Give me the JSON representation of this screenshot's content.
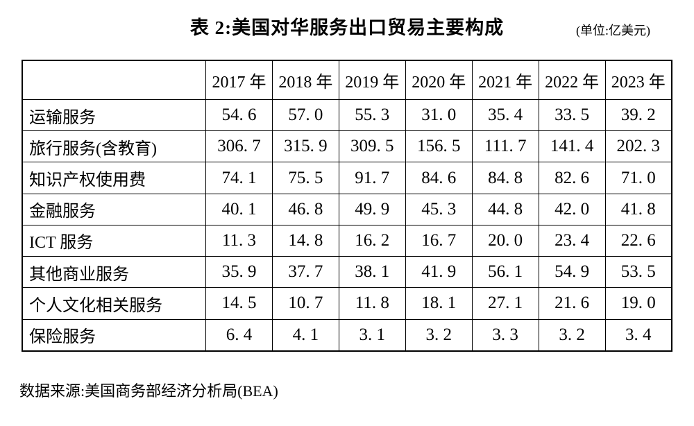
{
  "title": {
    "text": "表 2:美国对华服务出口贸易主要构成",
    "unit": "(单位:亿美元)"
  },
  "table": {
    "corner_label": "",
    "columns": [
      "2017 年",
      "2018 年",
      "2019 年",
      "2020 年",
      "2021 年",
      "2022 年",
      "2023 年"
    ],
    "rows": [
      {
        "label": "运输服务",
        "values": [
          "54. 6",
          "57. 0",
          "55. 3",
          "31. 0",
          "35. 4",
          "33. 5",
          "39. 2"
        ]
      },
      {
        "label": "旅行服务(含教育)",
        "values": [
          "306. 7",
          "315. 9",
          "309. 5",
          "156. 5",
          "111. 7",
          "141. 4",
          "202. 3"
        ]
      },
      {
        "label": "知识产权使用费",
        "values": [
          "74. 1",
          "75. 5",
          "91. 7",
          "84. 6",
          "84. 8",
          "82. 6",
          "71. 0"
        ]
      },
      {
        "label": "金融服务",
        "values": [
          "40. 1",
          "46. 8",
          "49. 9",
          "45. 3",
          "44. 8",
          "42. 0",
          "41. 8"
        ]
      },
      {
        "label": "ICT 服务",
        "values": [
          "11. 3",
          "14. 8",
          "16. 2",
          "16. 7",
          "20. 0",
          "23. 4",
          "22. 6"
        ]
      },
      {
        "label": "其他商业服务",
        "values": [
          "35. 9",
          "37. 7",
          "38. 1",
          "41. 9",
          "56. 1",
          "54. 9",
          "53. 5"
        ]
      },
      {
        "label": "个人文化相关服务",
        "values": [
          "14. 5",
          "10. 7",
          "11. 8",
          "18. 1",
          "27. 1",
          "21. 6",
          "19. 0"
        ]
      },
      {
        "label": "保险服务",
        "values": [
          "6. 4",
          "4. 1",
          "3. 1",
          "3. 2",
          "3. 3",
          "3. 2",
          "3. 4"
        ]
      }
    ]
  },
  "footer": {
    "source": "数据来源:美国商务部经济分析局(BEA)"
  },
  "colors": {
    "background": "#ffffff",
    "text": "#000000",
    "border": "#000000"
  }
}
